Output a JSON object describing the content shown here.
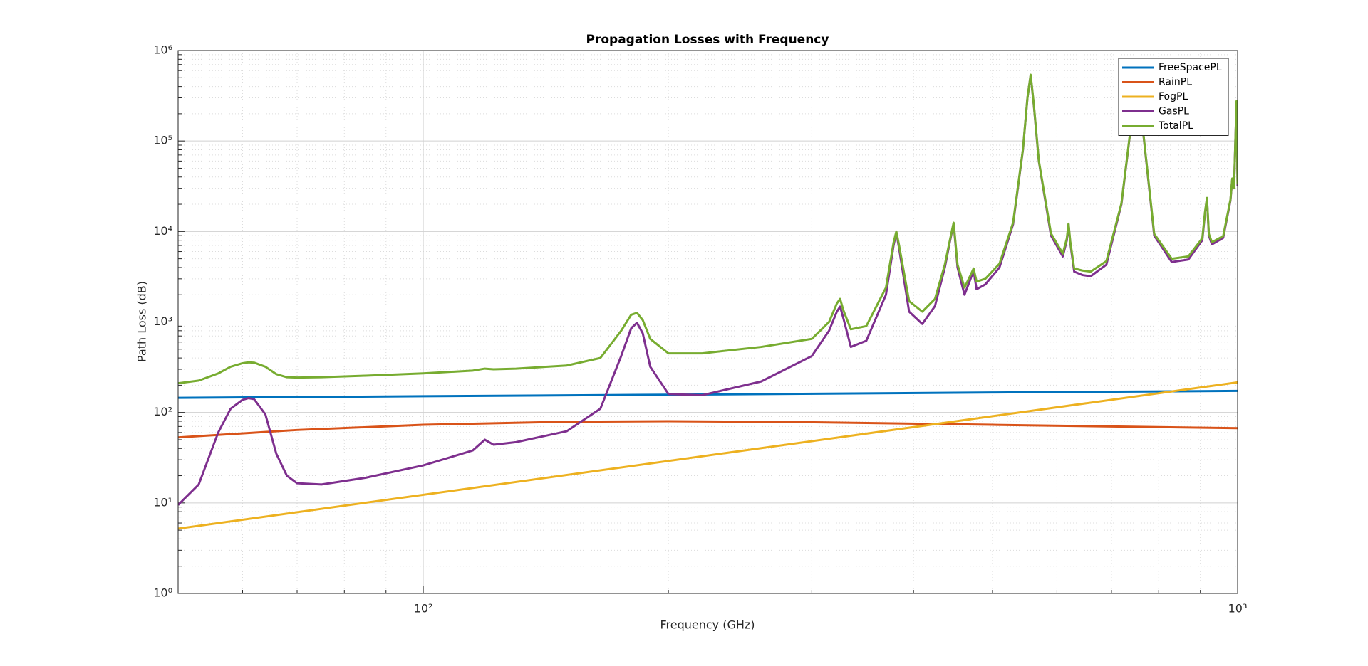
{
  "chart_data": {
    "type": "line",
    "title": "Propagation Losses with Frequency",
    "x_label": "Frequency (GHz)",
    "y_label": "Path Loss (dB)",
    "xscale": "log",
    "yscale": "log",
    "grid": true,
    "minor_grid": true,
    "legend_position": "northeast",
    "xlim": [
      50,
      1000
    ],
    "ylim": [
      1,
      1000000
    ],
    "xticks": [
      {
        "value": 100,
        "label": "10²"
      },
      {
        "value": 1000,
        "label": "10³"
      }
    ],
    "yticks": [
      {
        "value": 1,
        "label": "10⁰"
      },
      {
        "value": 10,
        "label": "10¹"
      },
      {
        "value": 100,
        "label": "10²"
      },
      {
        "value": 1000,
        "label": "10³"
      },
      {
        "value": 10000,
        "label": "10⁴"
      },
      {
        "value": 100000,
        "label": "10⁵"
      },
      {
        "value": 1000000,
        "label": "10⁶"
      }
    ],
    "x_minor_ticks": [
      60,
      70,
      80,
      90,
      200,
      300,
      400,
      500,
      600,
      700,
      800,
      900
    ],
    "y_minor_ticks": [
      2,
      3,
      4,
      5,
      6,
      7,
      8,
      9,
      20,
      30,
      40,
      50,
      60,
      70,
      80,
      90,
      200,
      300,
      400,
      500,
      600,
      700,
      800,
      900,
      2000,
      3000,
      4000,
      5000,
      6000,
      7000,
      8000,
      9000,
      20000,
      30000,
      40000,
      50000,
      60000,
      70000,
      80000,
      90000,
      200000,
      300000,
      400000,
      500000,
      600000,
      700000,
      800000,
      900000
    ],
    "series": [
      {
        "name": "FreeSpacePL",
        "color": "#0072bd",
        "x": [
          50,
          100,
          200,
          500,
          1000
        ],
        "values": [
          145,
          151,
          157,
          166,
          173
        ]
      },
      {
        "name": "RainPL",
        "color": "#d95319",
        "x": [
          50,
          70,
          100,
          150,
          200,
          300,
          500,
          1000
        ],
        "values": [
          53,
          64,
          73,
          79,
          80,
          78,
          73,
          67
        ]
      },
      {
        "name": "FogPL",
        "color": "#edb120",
        "x": [
          50,
          1000
        ],
        "values": [
          5.2,
          215
        ]
      },
      {
        "name": "GasPL",
        "color": "#7e2f8e",
        "x": [
          50,
          53,
          56,
          58,
          60,
          61,
          62,
          64,
          66,
          68,
          70,
          75,
          85,
          100,
          115,
          119,
          122,
          130,
          150,
          165,
          175,
          180,
          183,
          186,
          190,
          200,
          220,
          260,
          300,
          315,
          322,
          325,
          328,
          335,
          350,
          370,
          378,
          381,
          384,
          395,
          410,
          425,
          437,
          443,
          448,
          453,
          462,
          470,
          474,
          478,
          490,
          510,
          530,
          545,
          552,
          557,
          562,
          570,
          590,
          610,
          617,
          620,
          623,
          630,
          645,
          660,
          690,
          720,
          740,
          752,
          764,
          790,
          830,
          870,
          905,
          912,
          917,
          922,
          930,
          960,
          980,
          985,
          990,
          993,
          997,
          1000
        ],
        "values": [
          9.5,
          16,
          60,
          110,
          138,
          144,
          140,
          95,
          35,
          20,
          16.5,
          16,
          19,
          26,
          38,
          50,
          44,
          47,
          62,
          110,
          420,
          850,
          980,
          750,
          320,
          160,
          155,
          220,
          420,
          800,
          1300,
          1480,
          1100,
          530,
          620,
          2000,
          7000,
          9800,
          6500,
          1300,
          950,
          1500,
          4000,
          7500,
          12300,
          4000,
          2000,
          3000,
          3700,
          2300,
          2600,
          4000,
          12000,
          80000,
          300000,
          530000,
          250000,
          60000,
          9000,
          5300,
          8000,
          12000,
          7500,
          3600,
          3300,
          3200,
          4300,
          20000,
          150000,
          700000,
          150000,
          9000,
          4600,
          4900,
          8000,
          16000,
          23000,
          9000,
          7200,
          8500,
          22000,
          38000,
          30000,
          80000,
          270000,
          32000
        ]
      },
      {
        "name": "TotalPL",
        "color": "#77ac30",
        "x": [
          50,
          53,
          56,
          58,
          60,
          61,
          62,
          64,
          66,
          68,
          70,
          75,
          85,
          100,
          115,
          119,
          122,
          130,
          150,
          165,
          175,
          180,
          183,
          186,
          190,
          200,
          220,
          260,
          300,
          315,
          322,
          325,
          328,
          335,
          350,
          370,
          378,
          381,
          384,
          395,
          410,
          425,
          437,
          443,
          448,
          453,
          462,
          470,
          474,
          478,
          490,
          510,
          530,
          545,
          552,
          557,
          562,
          570,
          590,
          610,
          617,
          620,
          623,
          630,
          645,
          660,
          690,
          720,
          740,
          752,
          764,
          790,
          830,
          870,
          905,
          912,
          917,
          922,
          930,
          960,
          980,
          985,
          990,
          993,
          997,
          1000
        ],
        "values": [
          210,
          225,
          270,
          320,
          350,
          358,
          355,
          320,
          265,
          245,
          243,
          245,
          255,
          270,
          290,
          305,
          300,
          305,
          330,
          400,
          800,
          1200,
          1260,
          1050,
          650,
          450,
          450,
          530,
          650,
          1000,
          1600,
          1800,
          1350,
          830,
          900,
          2400,
          7500,
          10000,
          7000,
          1700,
          1300,
          1800,
          4300,
          7800,
          12500,
          4300,
          2400,
          3300,
          3900,
          2800,
          3000,
          4400,
          12500,
          81000,
          300000,
          540000,
          255000,
          61000,
          9500,
          5700,
          8400,
          12200,
          7800,
          3900,
          3700,
          3600,
          4700,
          20500,
          152000,
          720000,
          152000,
          9400,
          5000,
          5300,
          8400,
          16500,
          23500,
          9400,
          7600,
          8900,
          22500,
          38500,
          30500,
          81000,
          275000,
          33000
        ]
      }
    ]
  }
}
